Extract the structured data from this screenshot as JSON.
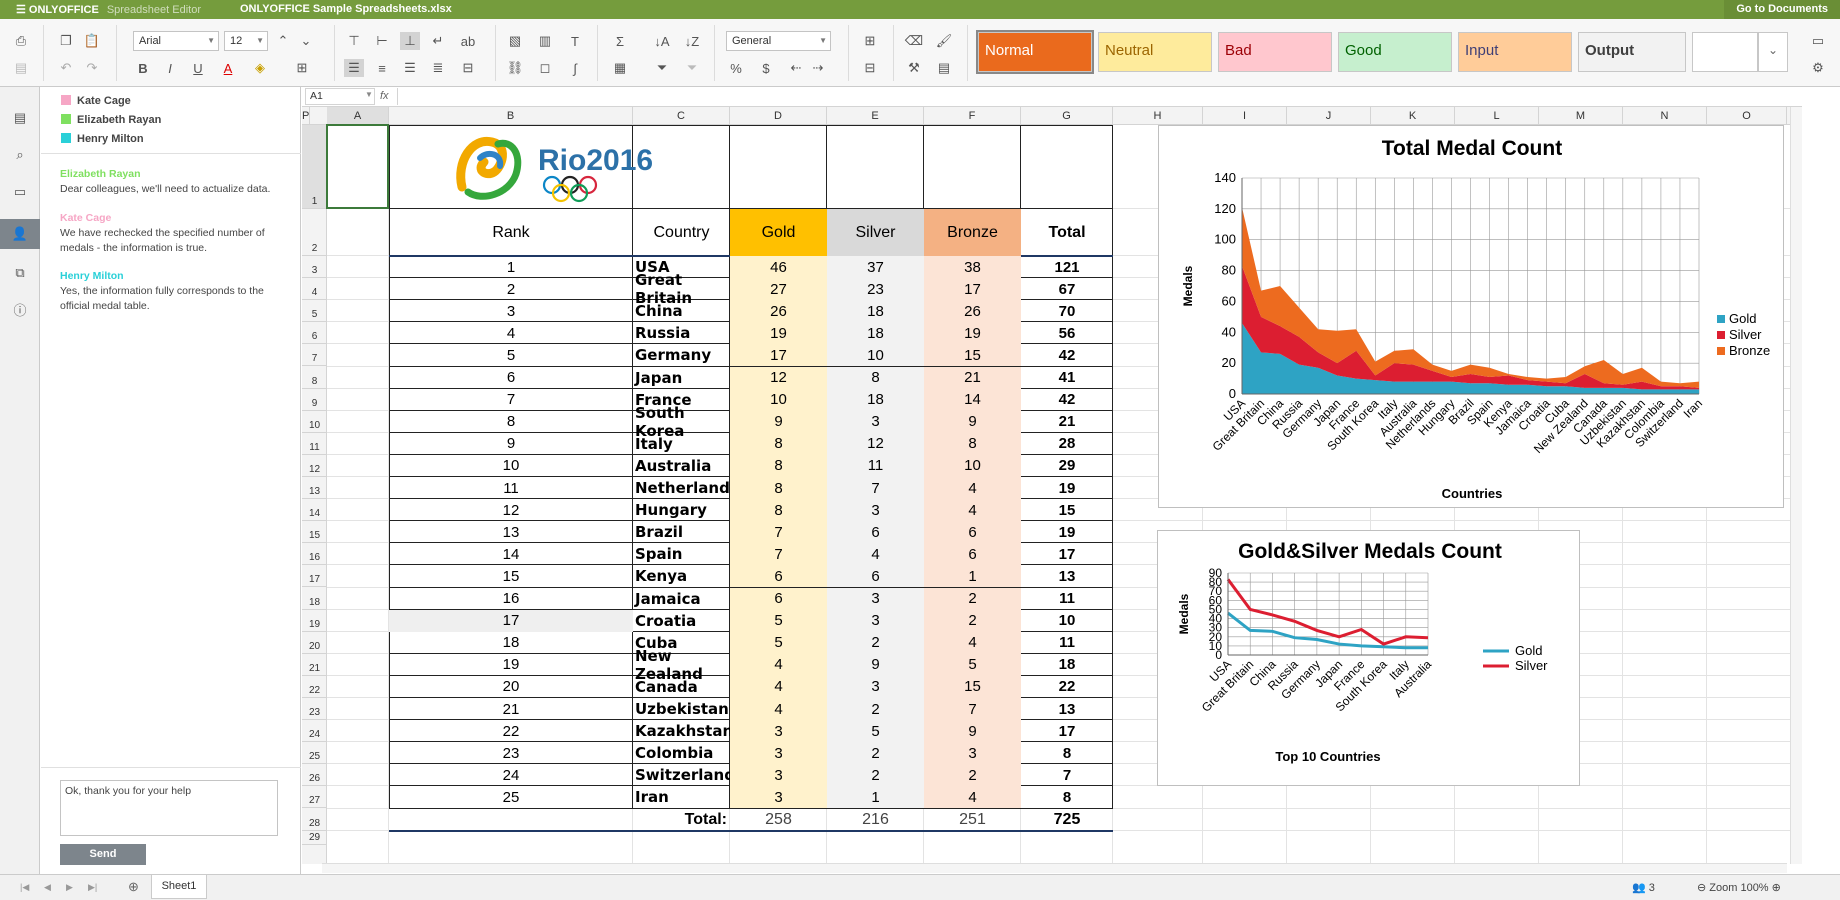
{
  "app": {
    "brand": "ONLYOFFICE",
    "brand_sub": "Spreadsheet Editor",
    "file_title": "ONLYOFFICE Sample Spreadsheets.xlsx",
    "goto_docs": "Go to Documents"
  },
  "toolbar": {
    "font_name": "Arial",
    "font_size": "12",
    "number_format": "General",
    "styles": [
      {
        "label": "Normal",
        "bg": "#ea6a1d",
        "fg": "#ffffff"
      },
      {
        "label": "Neutral",
        "bg": "#feeb9c",
        "fg": "#9c6500"
      },
      {
        "label": "Bad",
        "bg": "#ffc7ce",
        "fg": "#9c0006"
      },
      {
        "label": "Good",
        "bg": "#c6efce",
        "fg": "#006100"
      },
      {
        "label": "Input",
        "bg": "#ffcc99",
        "fg": "#3f3f76"
      },
      {
        "label": "Output",
        "bg": "#f2f2f2",
        "fg": "#3f3f3f"
      }
    ]
  },
  "panel": {
    "users": [
      {
        "name": "Kate Cage",
        "color": "#f6a6c5"
      },
      {
        "name": "Elizabeth Rayan",
        "color": "#7fe060"
      },
      {
        "name": "Henry Milton",
        "color": "#2ad0d8"
      }
    ],
    "comments": [
      {
        "author": "Elizabeth Rayan",
        "color": "#7fe060",
        "text": "Dear colleagues, we'll need to actualize data."
      },
      {
        "author": "Kate Cage",
        "color": "#f6a6c5",
        "text": "We have rechecked the specified number of medals - the information is true."
      },
      {
        "author": "Henry Milton",
        "color": "#2ad0d8",
        "text": "Yes, the information fully corresponds to the official medal table."
      }
    ],
    "input_value": "Ok, thank you for your help",
    "send_label": "Send"
  },
  "formula_bar": {
    "cell_ref": "A1",
    "fx": "fx"
  },
  "sheet": {
    "columns": [
      "A",
      "B",
      "C",
      "D",
      "E",
      "F",
      "G",
      "H",
      "I",
      "J",
      "K",
      "L",
      "M",
      "N",
      "O",
      "P"
    ],
    "headers": {
      "rank": "Rank",
      "country": "Country",
      "gold": "Gold",
      "silver": "Silver",
      "bronze": "Bronze",
      "total": "Total"
    },
    "rows": [
      {
        "rank": "1",
        "country": "USA",
        "gold": "46",
        "silver": "37",
        "bronze": "38",
        "total": "121"
      },
      {
        "rank": "2",
        "country": "Great Britain",
        "gold": "27",
        "silver": "23",
        "bronze": "17",
        "total": "67"
      },
      {
        "rank": "3",
        "country": "China",
        "gold": "26",
        "silver": "18",
        "bronze": "26",
        "total": "70"
      },
      {
        "rank": "4",
        "country": "Russia",
        "gold": "19",
        "silver": "18",
        "bronze": "19",
        "total": "56"
      },
      {
        "rank": "5",
        "country": "Germany",
        "gold": "17",
        "silver": "10",
        "bronze": "15",
        "total": "42"
      },
      {
        "rank": "6",
        "country": "Japan",
        "gold": "12",
        "silver": "8",
        "bronze": "21",
        "total": "41"
      },
      {
        "rank": "7",
        "country": "France",
        "gold": "10",
        "silver": "18",
        "bronze": "14",
        "total": "42"
      },
      {
        "rank": "8",
        "country": "South Korea",
        "gold": "9",
        "silver": "3",
        "bronze": "9",
        "total": "21"
      },
      {
        "rank": "9",
        "country": "Italy",
        "gold": "8",
        "silver": "12",
        "bronze": "8",
        "total": "28"
      },
      {
        "rank": "10",
        "country": "Australia",
        "gold": "8",
        "silver": "11",
        "bronze": "10",
        "total": "29"
      },
      {
        "rank": "11",
        "country": "Netherlands",
        "gold": "8",
        "silver": "7",
        "bronze": "4",
        "total": "19"
      },
      {
        "rank": "12",
        "country": "Hungary",
        "gold": "8",
        "silver": "3",
        "bronze": "4",
        "total": "15"
      },
      {
        "rank": "13",
        "country": "Brazil",
        "gold": "7",
        "silver": "6",
        "bronze": "6",
        "total": "19"
      },
      {
        "rank": "14",
        "country": "Spain",
        "gold": "7",
        "silver": "4",
        "bronze": "6",
        "total": "17"
      },
      {
        "rank": "15",
        "country": "Kenya",
        "gold": "6",
        "silver": "6",
        "bronze": "1",
        "total": "13"
      },
      {
        "rank": "16",
        "country": "Jamaica",
        "gold": "6",
        "silver": "3",
        "bronze": "2",
        "total": "11"
      },
      {
        "rank": "17",
        "country": "Croatia",
        "gold": "5",
        "silver": "3",
        "bronze": "2",
        "total": "10"
      },
      {
        "rank": "18",
        "country": "Cuba",
        "gold": "5",
        "silver": "2",
        "bronze": "4",
        "total": "11"
      },
      {
        "rank": "19",
        "country": "New Zealand",
        "gold": "4",
        "silver": "9",
        "bronze": "5",
        "total": "18"
      },
      {
        "rank": "20",
        "country": "Canada",
        "gold": "4",
        "silver": "3",
        "bronze": "15",
        "total": "22"
      },
      {
        "rank": "21",
        "country": "Uzbekistan",
        "gold": "4",
        "silver": "2",
        "bronze": "7",
        "total": "13"
      },
      {
        "rank": "22",
        "country": "Kazakhstan",
        "gold": "3",
        "silver": "5",
        "bronze": "9",
        "total": "17"
      },
      {
        "rank": "23",
        "country": "Colombia",
        "gold": "3",
        "silver": "2",
        "bronze": "3",
        "total": "8"
      },
      {
        "rank": "24",
        "country": "Switzerland",
        "gold": "3",
        "silver": "2",
        "bronze": "2",
        "total": "7"
      },
      {
        "rank": "25",
        "country": "Iran",
        "gold": "3",
        "silver": "1",
        "bronze": "4",
        "total": "8"
      }
    ],
    "totals": {
      "label": "Total:",
      "gold": "258",
      "silver": "216",
      "bronze": "251",
      "total": "725"
    },
    "logo_text": "Rio2016"
  },
  "chart_data": [
    {
      "type": "area",
      "stacked": true,
      "title": "Total Medal Count",
      "xlabel": "Countries",
      "ylabel": "Medals",
      "ylim": [
        0,
        140
      ],
      "yticks": [
        0,
        20,
        40,
        60,
        80,
        100,
        120,
        140
      ],
      "categories": [
        "USA",
        "Great Britain",
        "China",
        "Russia",
        "Germany",
        "Japan",
        "France",
        "South Korea",
        "Italy",
        "Australia",
        "Netherlands",
        "Hungary",
        "Brazil",
        "Spain",
        "Kenya",
        "Jamaica",
        "Croatia",
        "Cuba",
        "New Zealand",
        "Canada",
        "Uzbekistan",
        "Kazakhstan",
        "Colombia",
        "Switzerland",
        "Iran"
      ],
      "series": [
        {
          "name": "Gold",
          "color": "#2ea3c4",
          "values": [
            46,
            27,
            26,
            19,
            17,
            12,
            10,
            9,
            8,
            8,
            8,
            8,
            7,
            7,
            6,
            6,
            5,
            5,
            4,
            4,
            4,
            3,
            3,
            3,
            3
          ]
        },
        {
          "name": "Silver",
          "color": "#dc1e31",
          "values": [
            37,
            23,
            18,
            18,
            10,
            8,
            18,
            3,
            12,
            11,
            7,
            3,
            6,
            4,
            6,
            3,
            3,
            2,
            9,
            3,
            2,
            5,
            2,
            2,
            1
          ]
        },
        {
          "name": "Bronze",
          "color": "#ed6b1f",
          "values": [
            38,
            17,
            26,
            19,
            15,
            21,
            14,
            9,
            8,
            10,
            4,
            4,
            6,
            6,
            1,
            2,
            2,
            4,
            5,
            15,
            7,
            9,
            3,
            2,
            4
          ]
        }
      ],
      "grid": true,
      "legend": "right"
    },
    {
      "type": "line",
      "title": "Gold&Silver Medals Count",
      "xlabel": "Top 10 Countries",
      "ylabel": "Medals",
      "ylim": [
        0,
        90
      ],
      "yticks": [
        0,
        10,
        20,
        30,
        40,
        50,
        60,
        70,
        80,
        90
      ],
      "categories": [
        "USA",
        "Great Britain",
        "China",
        "Russia",
        "Germany",
        "Japan",
        "France",
        "South Korea",
        "Italy",
        "Australia"
      ],
      "series": [
        {
          "name": "Gold",
          "color": "#2ea3c4",
          "values": [
            46,
            27,
            26,
            19,
            17,
            12,
            10,
            9,
            8,
            8
          ]
        },
        {
          "name": "Silver",
          "color": "#dc1e31",
          "values": [
            83,
            50,
            44,
            37,
            27,
            20,
            28,
            12,
            20,
            19
          ]
        }
      ],
      "grid": true,
      "legend": "right"
    }
  ],
  "status": {
    "sheet_tab": "Sheet1",
    "users_count": "3",
    "zoom": "Zoom 100%"
  }
}
